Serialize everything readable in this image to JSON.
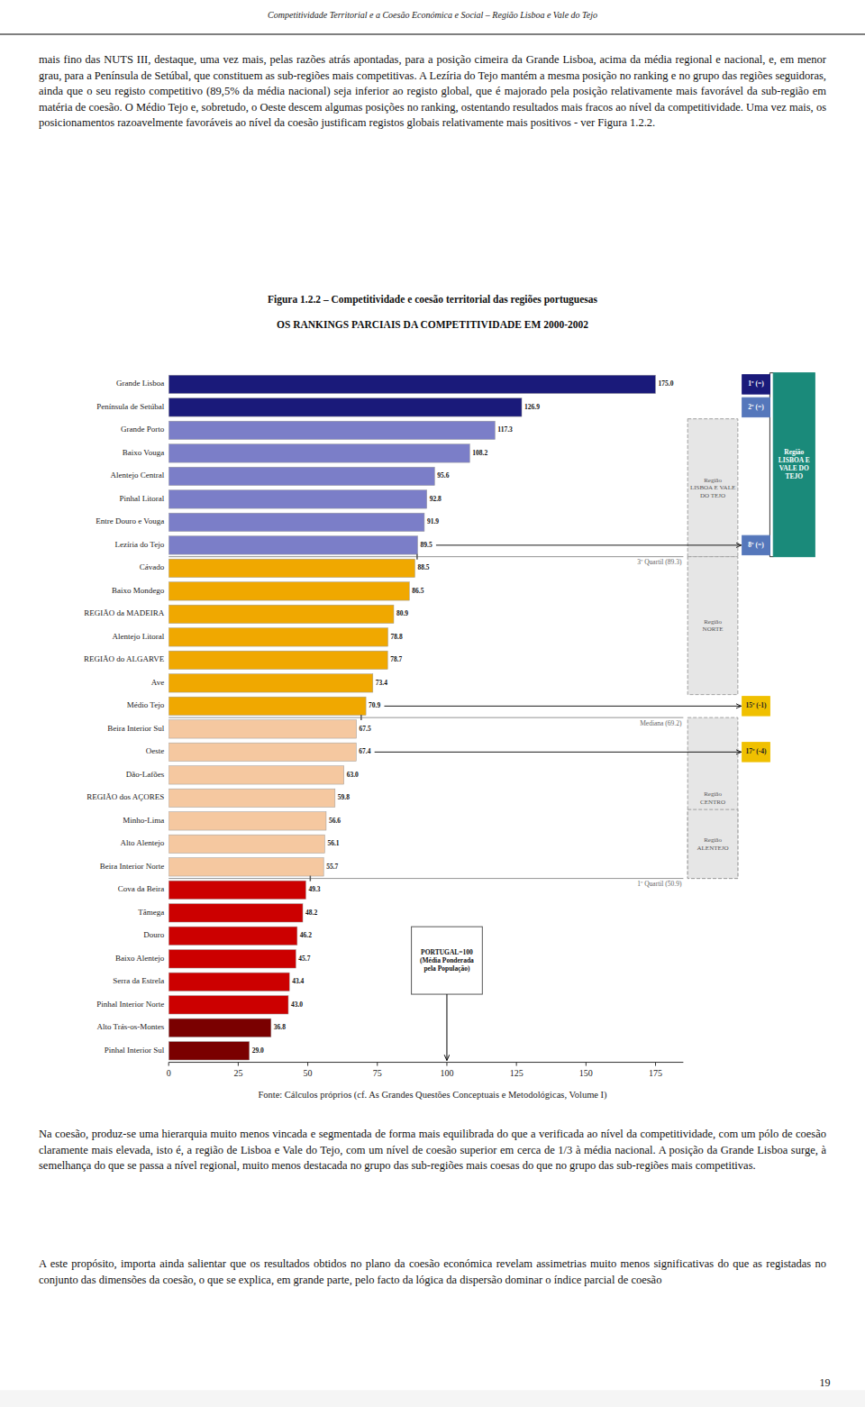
{
  "chart_data": {
    "type": "bar",
    "orientation": "horizontal",
    "header": "Competitividade Territorial e a Coesão Económica e Social – Região Lisboa e Vale do Tejo",
    "title": "Figura 1.2.2 – Competitividade e coesão territorial das regiões portuguesas",
    "subtitle": "OS RANKINGS PARCIAIS DA COMPETITIVIDADE EM 2000-2002",
    "footer": "Fonte: Cálculos próprios (cf. As Grandes Questões Conceptuais e Metodológicas, Volume I)",
    "page_text_top": "mais fino das NUTS III, destaque, uma vez mais, pelas razões atrás apontadas, para a posição cimeira da Grande Lisboa, acima da média regional e nacional, e, em menor grau, para a Península de Setúbal, que constituem as sub-regiões mais competitivas. A Lezíria do Tejo mantém a mesma posição no ranking e no grupo das regiões seguidoras, ainda que o seu registo competitivo (89,5% da média nacional) seja inferior ao registo global, que é majorado pela posição relativamente mais favorável da sub-região em matéria de coesão. O Médio Tejo e, sobretudo, o Oeste descem algumas posições no ranking, ostentando resultados mais fracos ao nível da competitividade. Uma vez mais, os posicionamentos razoavelmente favoráveis ao nível da coesão justificam registos globais relativamente mais positivos - ver Figura 1.2.2.",
    "page_text_bottom": [
      "Na coesão, produz-se uma hierarquia muito menos vincada e segmentada de forma mais equilibrada do que a verificada ao nível da competitividade, com um pólo de coesão claramente mais elevada, isto é, a região de Lisboa e Vale do Tejo, com um nível de coesão superior em cerca de 1/3 à média nacional. A posição da Grande Lisboa surge, à semelhança do que se passa a nível regional, muito menos destacada no grupo das sub-regiões mais coesas do que no grupo das sub-regiões mais competitivas.",
      "A este propósito, importa ainda salientar que os resultados obtidos no plano da coesão económica revelam assimetrias muito menos significativas do que as registadas no conjunto das dimensões da coesão, o que se explica, em grande parte, pelo facto da lógica da dispersão dominar o índice parcial de coesão"
    ],
    "page_number": "19",
    "categories": [
      "Grande Lisboa",
      "Península de Setúbal",
      "Grande Porto",
      "Baixo Vouga",
      "Alentejo Central",
      "Pinhal Litoral",
      "Entre Douro e Vouga",
      "Lezíria do Tejo",
      "Cávado",
      "Baixo Mondego",
      "REGIÃO da MADEIRA",
      "Alentejo Litoral",
      "REGIÃO do ALGARVE",
      "Ave",
      "Médio Tejo",
      "Beira Interior Sul",
      "Oeste",
      "Dão-Lafões",
      "REGIÃO dos AÇORES",
      "Minho-Lima",
      "Alto Alentejo",
      "Beira Interior Norte",
      "Cova da Beira",
      "Tâmega",
      "Douro",
      "Baixo Alentejo",
      "Serra da Estrela",
      "Pinhal Interior Norte",
      "Alto Trás-os-Montes",
      "Pinhal Interior Sul"
    ],
    "values": [
      175.0,
      126.9,
      117.3,
      108.2,
      95.6,
      92.8,
      91.9,
      89.5,
      88.5,
      86.5,
      80.9,
      78.8,
      78.7,
      73.4,
      70.9,
      67.5,
      67.4,
      63.0,
      59.8,
      56.6,
      56.1,
      55.7,
      49.3,
      48.2,
      46.2,
      45.7,
      43.4,
      43.0,
      36.8,
      29.0
    ],
    "value_labels": [
      "175.0",
      "126.9",
      "117.3",
      "108.2",
      "95.6",
      "92.8",
      "91.9",
      "89.5",
      "88.5",
      "86.5",
      "80.9",
      "78.8",
      "78.7",
      "73.4",
      "70.9",
      "67.5",
      "67.4",
      "63.0",
      "59.8",
      "56.6",
      "56.1",
      "55.7",
      "49.3",
      "48.2",
      "46.2",
      "45.7",
      "43.4",
      "43.0",
      "36.8",
      "29.0"
    ],
    "data_labels": true,
    "colors": [
      "#1a1a7a",
      "#1a1a7a",
      "#7b7ec8",
      "#7b7ec8",
      "#7b7ec8",
      "#7b7ec8",
      "#7b7ec8",
      "#7b7ec8",
      "#f0a800",
      "#f0a800",
      "#f0a800",
      "#f0a800",
      "#f0a800",
      "#f0a800",
      "#f0a800",
      "#f5c8a0",
      "#f5c8a0",
      "#f5c8a0",
      "#f5c8a0",
      "#f5c8a0",
      "#f5c8a0",
      "#f5c8a0",
      "#cc0000",
      "#cc0000",
      "#cc0000",
      "#cc0000",
      "#cc0000",
      "#cc0000",
      "#7a0000",
      "#7a0000"
    ],
    "xlim": [
      0,
      185
    ],
    "xticks": [
      0,
      25,
      50,
      75,
      100,
      125,
      150,
      175
    ],
    "quartiles": [
      {
        "label": "3º Quartil (89.3)",
        "value": 89.3,
        "after": "Lezíria do Tejo"
      },
      {
        "label": "Mediana (69.2)",
        "value": 69.2,
        "after": "Médio Tejo"
      },
      {
        "label": "1º Quartil (50.9)",
        "value": 50.9,
        "after": "Beira Interior Norte"
      }
    ],
    "region_boxes": [
      {
        "text": "Região\nLISBOA E VALE\nDO TEJO",
        "from": "Grande Porto",
        "to": "Lezíria do Tejo"
      },
      {
        "text": "Região\nNORTE",
        "from": "Cávado",
        "to": "Ave"
      },
      {
        "text": "Região\nCENTRO",
        "from": "Beira Interior Sul",
        "to": "Beira Interior Norte"
      },
      {
        "text": "Região\nALENTEJO",
        "from": "Minho-Lima",
        "to": "Beira Interior Norte"
      }
    ],
    "rank_boxes": [
      {
        "text": "1º (=)",
        "category": "Grande Lisboa",
        "color": "#1a1a7a",
        "arrow": false
      },
      {
        "text": "2º (=)",
        "category": "Península de Setúbal",
        "color": "#5577bb",
        "arrow": false
      },
      {
        "text": "8º (=)",
        "category": "Lezíria do Tejo",
        "color": "#5577bb",
        "arrow": true
      },
      {
        "text": "15º (-1)",
        "category": "Médio Tejo",
        "color": "#f0c000",
        "arrow": true
      },
      {
        "text": "17º (-4)",
        "category": "Oeste",
        "color": "#f0c000",
        "arrow": true
      }
    ],
    "group_box": {
      "text": "Região\nLISBOA E\nVALE DO\nTEJO",
      "from": "Grande Lisboa",
      "to": "Lezíria do Tejo",
      "color": "#1a8a7a"
    },
    "reference": {
      "text": "PORTUGAL=100\n(Média Ponderada\npela População)",
      "value": 100,
      "category": "Douro"
    }
  }
}
